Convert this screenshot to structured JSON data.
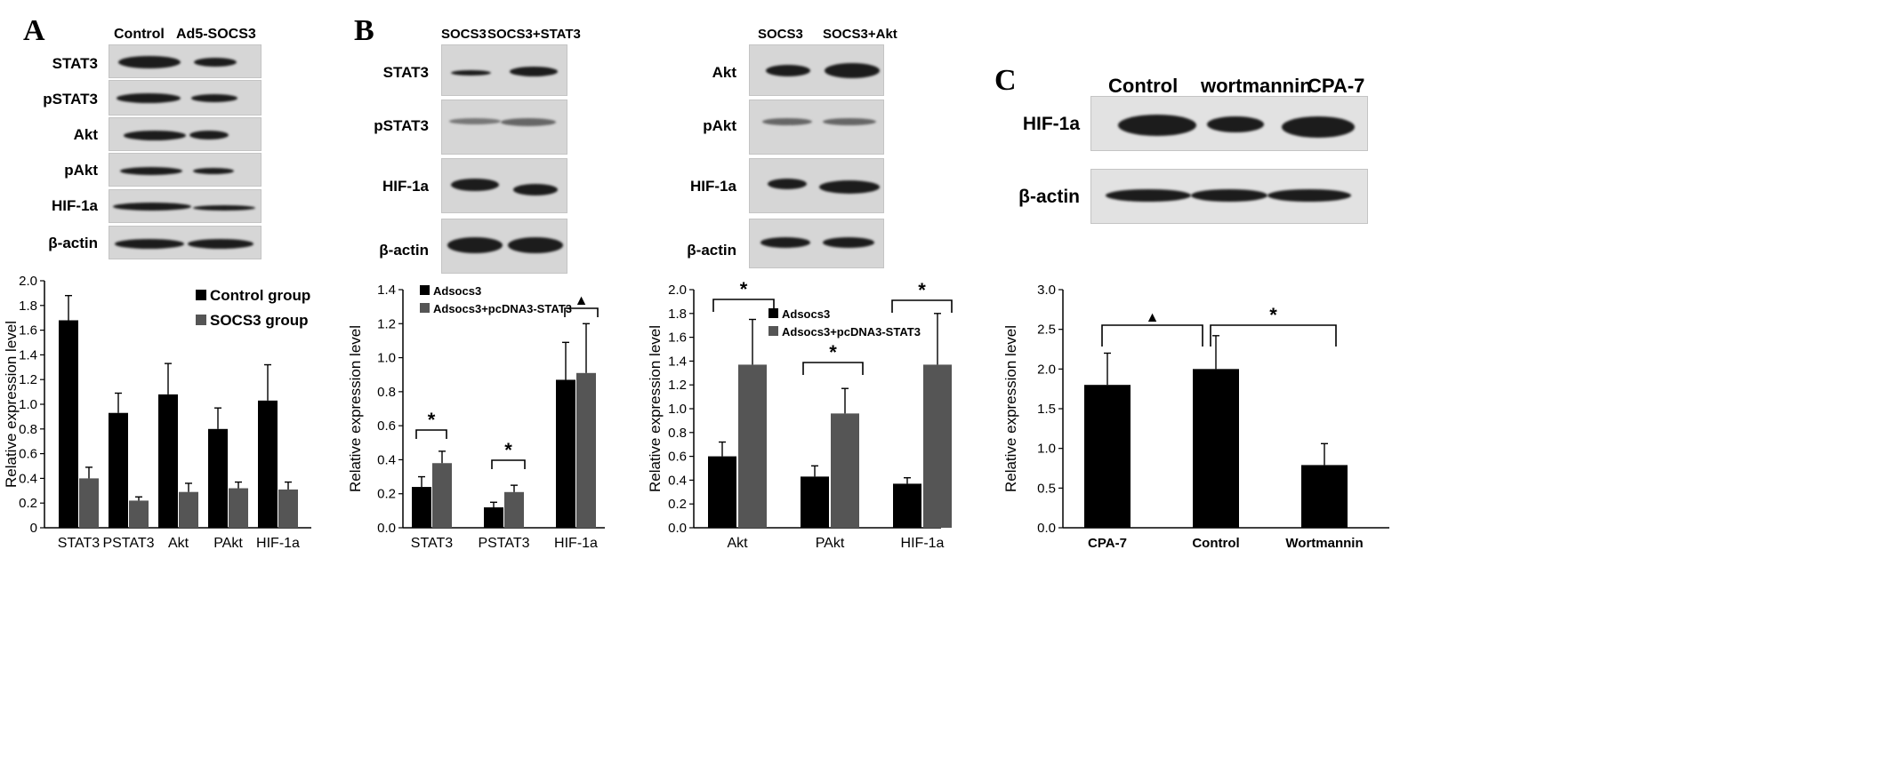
{
  "panels": {
    "A": {
      "letter": "A",
      "lanes": [
        "Control",
        "Ad5-SOCS3"
      ],
      "blots": [
        "STAT3",
        "pSTAT3",
        "Akt",
        "pAkt",
        "HIF-1a",
        "β-actin"
      ]
    },
    "B1": {
      "letter": "B",
      "lanes": [
        "SOCS3",
        "SOCS3+STAT3"
      ],
      "blots": [
        "STAT3",
        "pSTAT3",
        "HIF-1a",
        "β-actin"
      ]
    },
    "B2": {
      "lanes": [
        "SOCS3",
        "SOCS3+Akt"
      ],
      "blots": [
        "Akt",
        "pAkt",
        "HIF-1a",
        "β-actin"
      ]
    },
    "C": {
      "letter": "C",
      "lanes": [
        "Control",
        "wortmannin",
        "CPA-7"
      ],
      "blots": [
        "HIF-1a",
        "β-actin"
      ]
    }
  },
  "chart_data": [
    {
      "id": "A",
      "type": "bar",
      "categories": [
        "STAT3",
        "PSTAT3",
        "Akt",
        "PAkt",
        "HIF-1a"
      ],
      "series": [
        {
          "name": "Control group",
          "values": [
            1.68,
            0.93,
            1.08,
            0.8,
            1.03
          ],
          "errors": [
            0.2,
            0.16,
            0.25,
            0.17,
            0.29
          ],
          "color": "#000000"
        },
        {
          "name": "SOCS3 group",
          "values": [
            0.4,
            0.22,
            0.29,
            0.32,
            0.31
          ],
          "errors": [
            0.09,
            0.03,
            0.07,
            0.05,
            0.06
          ],
          "color": "#555555"
        }
      ],
      "ylabel": "Relative expression level",
      "ylim": [
        0,
        2.0
      ],
      "yticks": [
        "0",
        "0.2",
        "0.4",
        "0.6",
        "0.8",
        "1.0",
        "1.2",
        "1.4",
        "1.6",
        "1.8",
        "2.0"
      ],
      "legend_position": "top-right",
      "grid": false
    },
    {
      "id": "B1",
      "type": "bar",
      "categories": [
        "STAT3",
        "PSTAT3",
        "HIF-1a"
      ],
      "series": [
        {
          "name": "Adsocs3",
          "values": [
            0.24,
            0.12,
            0.87
          ],
          "errors": [
            0.06,
            0.03,
            0.22
          ],
          "color": "#000000"
        },
        {
          "name": "Adsocs3+pcDNA3-STAT3",
          "values": [
            0.38,
            0.21,
            0.91
          ],
          "errors": [
            0.07,
            0.04,
            0.29
          ],
          "color": "#555555"
        }
      ],
      "ylabel": "Relative expression level",
      "ylim": [
        0,
        1.4
      ],
      "yticks": [
        "0.0",
        "0.2",
        "0.4",
        "0.6",
        "0.8",
        "1.0",
        "1.2",
        "1.4"
      ],
      "legend_position": "top-left",
      "annotations": [
        "*",
        "*",
        "▲"
      ],
      "grid": false
    },
    {
      "id": "B2",
      "type": "bar",
      "categories": [
        "Akt",
        "PAkt",
        "HIF-1a"
      ],
      "series": [
        {
          "name": "Adsocs3",
          "values": [
            0.6,
            0.43,
            0.37
          ],
          "errors": [
            0.12,
            0.09,
            0.05
          ],
          "color": "#000000"
        },
        {
          "name": "Adsocs3+pcDNA3-STAT3",
          "values": [
            1.37,
            0.96,
            1.37
          ],
          "errors": [
            0.38,
            0.21,
            0.43
          ],
          "color": "#555555"
        }
      ],
      "ylabel": "Relative expression level",
      "ylim": [
        0,
        2.0
      ],
      "yticks": [
        "0.0",
        "0.2",
        "0.4",
        "0.6",
        "0.8",
        "1.0",
        "1.2",
        "1.4",
        "1.6",
        "1.8",
        "2.0"
      ],
      "legend_position": "center",
      "annotations": [
        "*",
        "*",
        "*"
      ],
      "grid": false
    },
    {
      "id": "C",
      "type": "bar",
      "categories": [
        "CPA-7",
        "Control",
        "Wortmannin"
      ],
      "series": [
        {
          "values": [
            1.8,
            2.0,
            0.79
          ],
          "errors": [
            0.4,
            0.42,
            0.27
          ],
          "color": "#000000"
        }
      ],
      "ylabel": "Relative expression level",
      "ylim": [
        0,
        3.0
      ],
      "yticks": [
        "0.0",
        "0.5",
        "1.0",
        "1.5",
        "2.0",
        "2.5",
        "3.0"
      ],
      "annotations": [
        "▲",
        "*"
      ],
      "grid": false
    }
  ]
}
